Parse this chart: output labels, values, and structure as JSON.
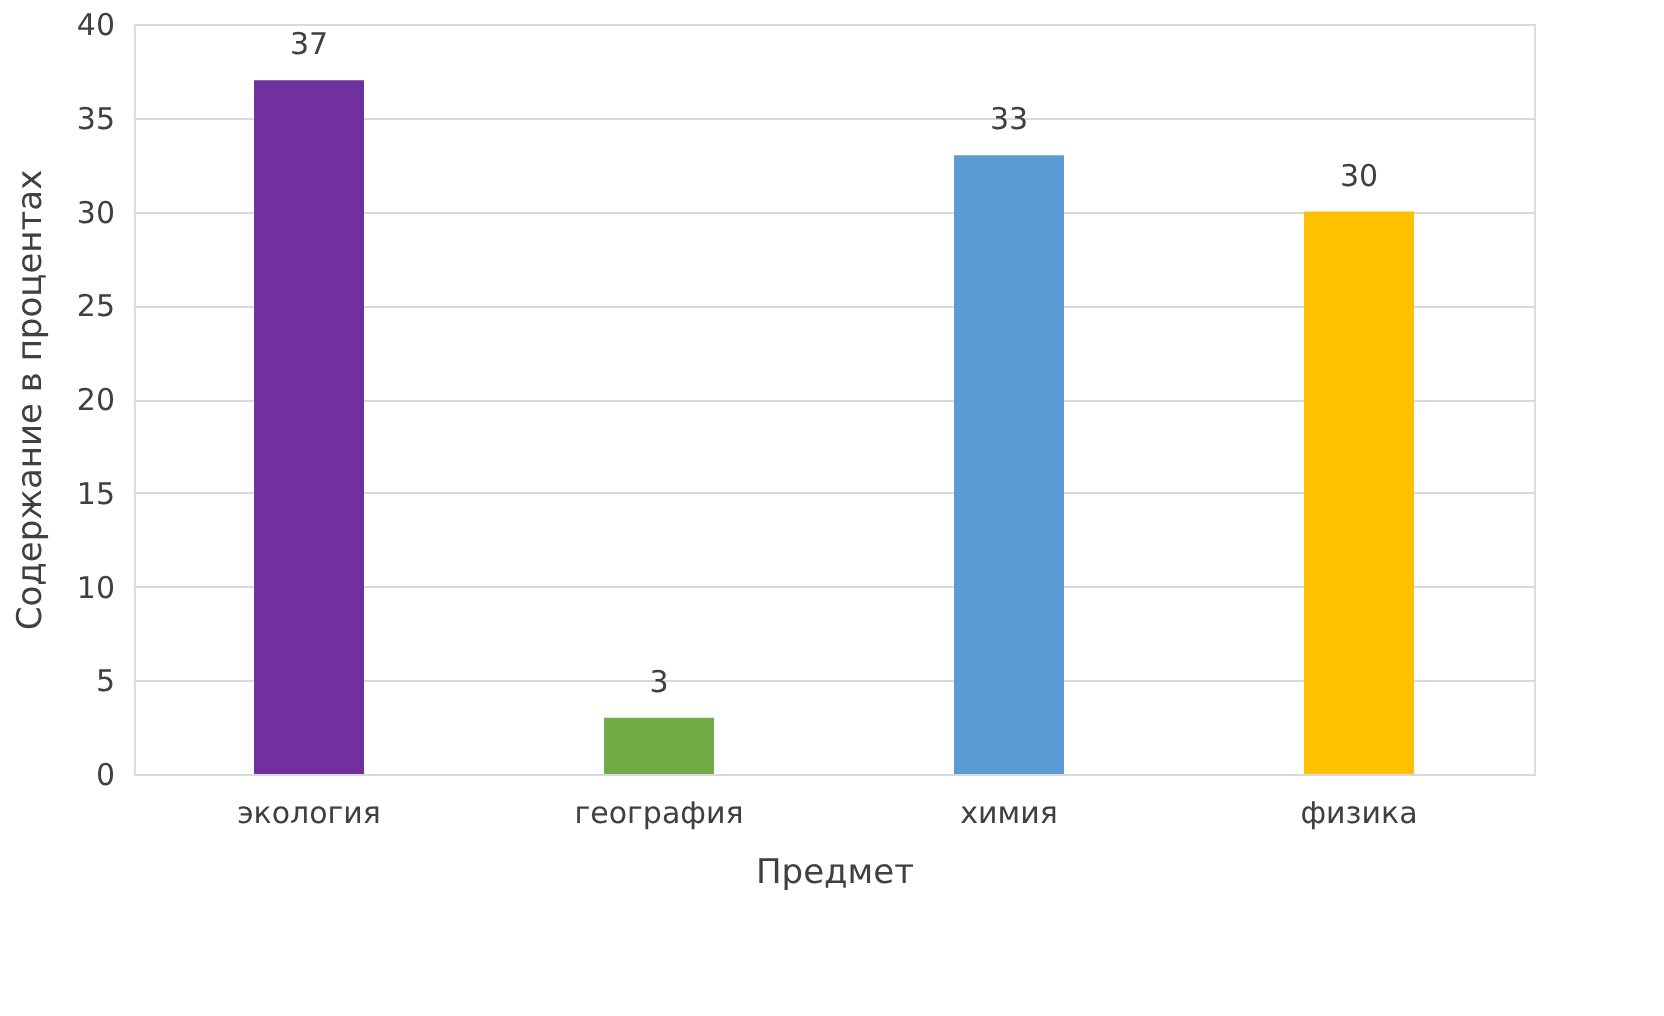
{
  "chart_data": {
    "type": "bar",
    "xlabel": "Предмет",
    "ylabel": "Содержание в процентах",
    "categories": [
      "экология",
      "география",
      "химия",
      "физика"
    ],
    "values": [
      37,
      3,
      33,
      30
    ],
    "colors": [
      "#7030a0",
      "#70ad47",
      "#5b9bd5",
      "#ffc000"
    ],
    "ylim": [
      0,
      40
    ],
    "yticks": [
      0,
      5,
      10,
      15,
      20,
      25,
      30,
      35,
      40
    ],
    "grid": "y",
    "data_labels": true
  }
}
